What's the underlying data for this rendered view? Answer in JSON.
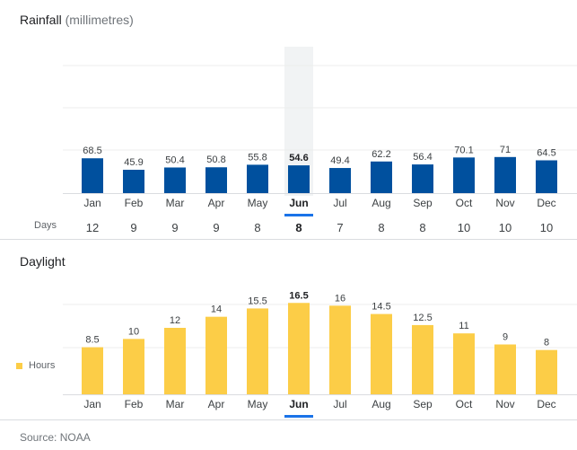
{
  "chart_data": [
    {
      "type": "bar",
      "title": "Rainfall",
      "unit_label": "(millimetres)",
      "categories": [
        "Jan",
        "Feb",
        "Mar",
        "Apr",
        "May",
        "Jun",
        "Jul",
        "Aug",
        "Sep",
        "Oct",
        "Nov",
        "Dec"
      ],
      "values": [
        68.5,
        45.9,
        50.4,
        50.8,
        55.8,
        54.6,
        49.4,
        62.2,
        56.4,
        70.1,
        71,
        64.5
      ],
      "value_labels": [
        "68.5",
        "45.9",
        "50.4",
        "50.8",
        "55.8",
        "54.6",
        "49.4",
        "62.2",
        "56.4",
        "70.1",
        "71",
        "64.5"
      ],
      "ylim": [
        0,
        288
      ],
      "color": "#00509e",
      "selected_index": 5,
      "secondary_row": {
        "label": "Days",
        "values": [
          12,
          9,
          9,
          9,
          8,
          8,
          7,
          8,
          8,
          10,
          10,
          10
        ]
      }
    },
    {
      "type": "bar",
      "title": "Daylight",
      "categories": [
        "Jan",
        "Feb",
        "Mar",
        "Apr",
        "May",
        "Jun",
        "Jul",
        "Aug",
        "Sep",
        "Oct",
        "Nov",
        "Dec"
      ],
      "values": [
        8.5,
        10,
        12,
        14,
        15.5,
        16.5,
        16,
        14.5,
        12.5,
        11,
        9,
        8
      ],
      "value_labels": [
        "8.5",
        "10",
        "12",
        "14",
        "15.5",
        "16.5",
        "16",
        "14.5",
        "12.5",
        "11",
        "9",
        "8"
      ],
      "ylim": [
        0,
        24
      ],
      "color": "#fccd47",
      "selected_index": 5,
      "legend": [
        {
          "name": "Hours",
          "color": "#fccd47"
        }
      ]
    }
  ],
  "source": "Source: NOAA"
}
